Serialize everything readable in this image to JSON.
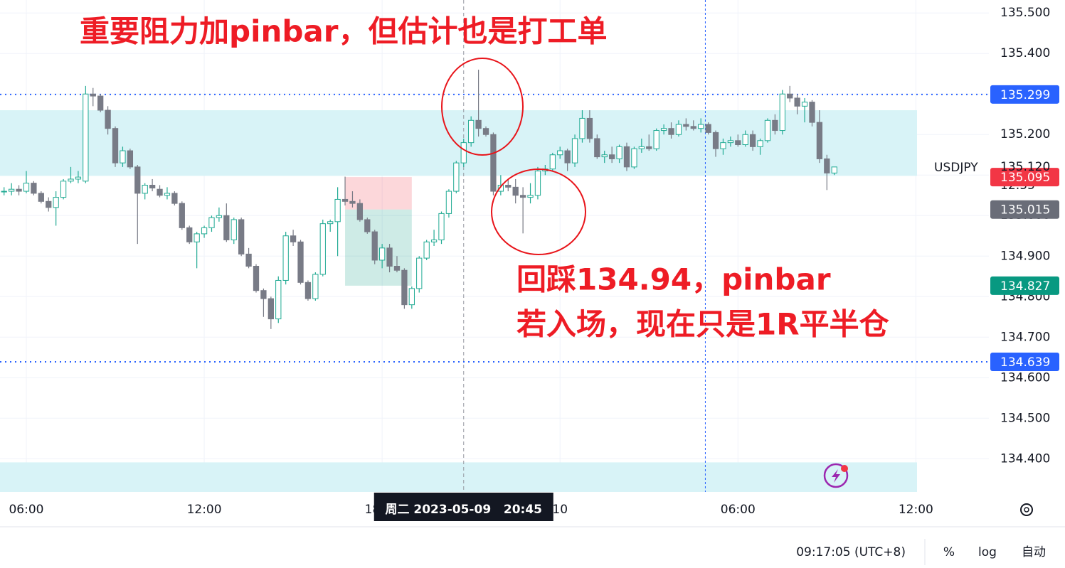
{
  "chart_data": {
    "type": "candlestick",
    "symbol": "USDJPY",
    "open": [
      135.06,
      135.06,
      135.065,
      135.06,
      135.08,
      135.055,
      135.035,
      135.02,
      135.045,
      135.085,
      135.09,
      135.085,
      135.3,
      135.295,
      135.26,
      135.215,
      135.13,
      135.16,
      135.12,
      135.055,
      135.075,
      135.065,
      135.05,
      135.055,
      135.03,
      134.97,
      134.935,
      134.955,
      134.97,
      134.995,
      135.0,
      134.94,
      134.99,
      134.905,
      134.875,
      134.815,
      134.795,
      134.745,
      134.84,
      134.95,
      134.935,
      134.835,
      134.795,
      134.855,
      134.98,
      134.985,
      135.04,
      135.035,
      135.03,
      134.99,
      134.96,
      134.89,
      134.92,
      134.875,
      134.865,
      134.78,
      134.82,
      134.895,
      134.935,
      134.94,
      135.005,
      135.06,
      135.13,
      135.18,
      135.235,
      135.215,
      135.2,
      135.06,
      135.075,
      135.07,
      135.05,
      135.045,
      135.05,
      135.11,
      135.115,
      135.15,
      135.16,
      135.13,
      135.19,
      135.24,
      135.19,
      135.145,
      135.15,
      135.14,
      135.17,
      135.12,
      135.165,
      135.17,
      135.165,
      135.21,
      135.215,
      135.2,
      135.225,
      135.22,
      135.215,
      135.225,
      135.205,
      135.165,
      135.18,
      135.185,
      135.175,
      135.2,
      135.17,
      135.185,
      135.235,
      135.21,
      135.3,
      135.29,
      135.27,
      135.28,
      135.23,
      135.14,
      135.105
    ],
    "high": [
      135.07,
      135.08,
      135.075,
      135.11,
      135.085,
      135.06,
      135.045,
      135.06,
      135.09,
      135.12,
      135.11,
      135.32,
      135.315,
      135.3,
      135.27,
      135.22,
      135.17,
      135.165,
      135.125,
      135.08,
      135.09,
      135.075,
      135.07,
      135.06,
      135.035,
      134.975,
      134.96,
      134.975,
      135.0,
      135.02,
      135.03,
      134.995,
      134.995,
      134.92,
      134.88,
      134.82,
      134.8,
      134.85,
      134.96,
      134.965,
      134.94,
      134.84,
      134.86,
      134.99,
      134.99,
      135.07,
      135.096,
      135.06,
      135.04,
      134.995,
      134.965,
      134.93,
      134.93,
      134.9,
      134.87,
      134.825,
      134.9,
      134.94,
      134.965,
      135.01,
      135.065,
      135.135,
      135.19,
      135.245,
      135.36,
      135.22,
      135.205,
      135.1,
      135.09,
      135.09,
      135.07,
      135.08,
      135.12,
      135.125,
      135.155,
      135.17,
      135.165,
      135.2,
      135.26,
      135.26,
      135.2,
      135.16,
      135.17,
      135.175,
      135.18,
      135.17,
      135.19,
      135.2,
      135.215,
      135.225,
      135.23,
      135.235,
      135.24,
      135.235,
      135.24,
      135.23,
      135.21,
      135.19,
      135.195,
      135.2,
      135.21,
      135.21,
      135.19,
      135.24,
      135.25,
      135.31,
      135.32,
      135.3,
      135.29,
      135.285,
      135.26,
      135.15,
      135.12
    ],
    "low": [
      135.05,
      135.05,
      135.05,
      135.055,
      135.05,
      135.03,
      135.01,
      134.975,
      135.04,
      135.08,
      135.08,
      135.08,
      135.27,
      135.255,
      135.2,
      135.12,
      135.12,
      135.115,
      134.93,
      135.04,
      135.06,
      135.045,
      135.04,
      135.025,
      134.965,
      134.93,
      134.87,
      134.945,
      134.96,
      134.985,
      134.935,
      134.93,
      134.9,
      134.87,
      134.81,
      134.75,
      134.72,
      134.735,
      134.83,
      134.925,
      134.83,
      134.79,
      134.79,
      134.85,
      134.96,
      134.9,
      135.025,
      135.02,
      134.985,
      134.955,
      134.88,
      134.87,
      134.86,
      134.86,
      134.77,
      134.77,
      134.81,
      134.89,
      134.925,
      134.93,
      134.995,
      135.055,
      135.12,
      135.17,
      135.195,
      135.195,
      135.05,
      135.05,
      135.06,
      135.03,
      134.956,
      135.03,
      135.04,
      135.1,
      135.11,
      135.14,
      135.11,
      135.12,
      135.18,
      135.18,
      135.14,
      135.13,
      135.13,
      135.13,
      135.11,
      135.115,
      135.155,
      135.16,
      135.16,
      135.2,
      135.19,
      135.195,
      135.21,
      135.21,
      135.205,
      135.2,
      135.145,
      135.15,
      135.17,
      135.17,
      135.17,
      135.16,
      135.15,
      135.18,
      135.2,
      135.2,
      135.28,
      135.25,
      135.23,
      135.22,
      135.13,
      135.063,
      135.1
    ],
    "close": [
      135.06,
      135.065,
      135.06,
      135.08,
      135.055,
      135.035,
      135.02,
      135.045,
      135.085,
      135.09,
      135.095,
      135.3,
      135.295,
      135.26,
      135.215,
      135.13,
      135.16,
      135.12,
      135.055,
      135.075,
      135.068,
      135.05,
      135.055,
      135.03,
      134.97,
      134.935,
      134.955,
      134.97,
      134.995,
      135.0,
      134.94,
      134.99,
      134.905,
      134.875,
      134.815,
      134.795,
      134.745,
      134.84,
      134.95,
      134.935,
      134.835,
      134.795,
      134.855,
      134.98,
      134.985,
      135.04,
      135.035,
      135.03,
      134.99,
      134.96,
      134.89,
      134.92,
      134.875,
      134.865,
      134.78,
      134.82,
      134.895,
      134.935,
      134.94,
      135.005,
      135.06,
      135.13,
      135.18,
      135.235,
      135.215,
      135.2,
      135.06,
      135.075,
      135.07,
      135.05,
      135.045,
      135.05,
      135.11,
      135.115,
      135.15,
      135.16,
      135.13,
      135.19,
      135.24,
      135.19,
      135.145,
      135.15,
      135.14,
      135.17,
      135.12,
      135.165,
      135.17,
      135.165,
      135.21,
      135.215,
      135.2,
      135.225,
      135.22,
      135.215,
      135.225,
      135.205,
      135.165,
      135.18,
      135.185,
      135.175,
      135.2,
      135.17,
      135.185,
      135.235,
      135.21,
      135.3,
      135.29,
      135.27,
      135.28,
      135.23,
      135.14,
      135.105,
      135.12
    ],
    "up_color": "#22ab94",
    "down_color": "#787b86",
    "xlim": [
      -0.55,
      132.85
    ],
    "xticks": [
      {
        "value": 3,
        "label": "06:00"
      },
      {
        "value": 27,
        "label": "12:00"
      },
      {
        "value": 51,
        "label": "18:00"
      },
      {
        "value": 75,
        "label": "10"
      },
      {
        "value": 99,
        "label": "06:00"
      },
      {
        "value": 123,
        "label": "12:00"
      }
    ],
    "ylim": [
      134.318,
      135.532
    ],
    "yticks": [
      {
        "value": 134.4,
        "label": "134.400"
      },
      {
        "value": 134.5,
        "label": "134.500"
      },
      {
        "value": 134.6,
        "label": "134.600"
      },
      {
        "value": 134.7,
        "label": "134.700"
      },
      {
        "value": 134.8,
        "label": "134.800"
      },
      {
        "value": 134.9,
        "label": "134.900"
      },
      {
        "value": 135.0,
        "label": "135.000"
      },
      {
        "value": 135.1,
        "label": "135.100"
      },
      {
        "value": 135.2,
        "label": "135.200"
      },
      {
        "value": 135.3,
        "label": "135.300"
      },
      {
        "value": 135.4,
        "label": "135.400"
      },
      {
        "value": 135.5,
        "label": "135.500"
      }
    ],
    "grid": true,
    "zones": {
      "color": "#d8f3f7",
      "low": [
        135.098,
        134.318
      ],
      "high": [
        135.26,
        134.391
      ]
    },
    "horizontal_lines": {
      "color": "#2962ff",
      "values": [
        135.299,
        134.639
      ]
    },
    "vertical_line": 94.6,
    "position": {
      "start": 46,
      "end": 55,
      "stop": 135.095,
      "entry": 135.015,
      "target": 134.827,
      "stop_color": "#f23645",
      "entry_color": "#6a6d78",
      "target_color": "#089981"
    },
    "last_price": {
      "value": 135.12,
      "label": "135.120"
    },
    "countdown": "12:55",
    "crosshair": {
      "x": 62,
      "label": "周二 2023-05-09   20:45"
    },
    "annotations": [
      "重要阻力加pinbar，但估计也是打工单",
      "回踩134.94，pinbar",
      "若入场，现在只是1R平半仓"
    ],
    "footer": {
      "clock": "09:17:05 (UTC+8)",
      "percent": "%",
      "log": "log",
      "auto": "自动"
    }
  }
}
